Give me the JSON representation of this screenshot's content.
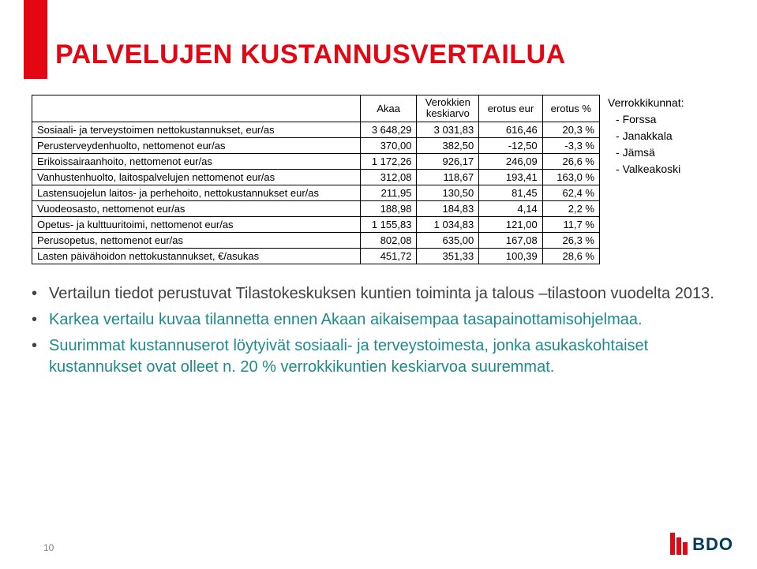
{
  "title": "PALVELUJEN KUSTANNUSVERTAILUA",
  "table": {
    "header_top": {
      "blank": "",
      "akaa": "Akaa",
      "verokkien": "Verokkien\nkeskiarvo",
      "erotus_eur": "erotus eur",
      "erotus_pct": "erotus %"
    },
    "rows": [
      {
        "label": "Sosiaali- ja terveystoimen nettokustannukset, eur/as",
        "c1": "3 648,29",
        "c2": "3 031,83",
        "c3": "616,46",
        "c4": "20,3 %"
      },
      {
        "label": "Perusterveydenhuolto, nettomenot eur/as",
        "c1": "370,00",
        "c2": "382,50",
        "c3": "-12,50",
        "c4": "-3,3 %"
      },
      {
        "label": "Erikoissairaanhoito, nettomenot eur/as",
        "c1": "1 172,26",
        "c2": "926,17",
        "c3": "246,09",
        "c4": "26,6 %"
      },
      {
        "label": "Vanhustenhuolto, laitospalvelujen nettomenot eur/as",
        "c1": "312,08",
        "c2": "118,67",
        "c3": "193,41",
        "c4": "163,0 %"
      },
      {
        "label": "Lastensuojelun laitos- ja perhehoito, nettokustannukset eur/as",
        "c1": "211,95",
        "c2": "130,50",
        "c3": "81,45",
        "c4": "62,4 %"
      },
      {
        "label": "Vuodeosasto, nettomenot eur/as",
        "c1": "188,98",
        "c2": "184,83",
        "c3": "4,14",
        "c4": "2,2 %"
      },
      {
        "label": "Opetus- ja kulttuuritoimi, nettomenot eur/as",
        "c1": "1 155,83",
        "c2": "1 034,83",
        "c3": "121,00",
        "c4": "11,7 %"
      },
      {
        "label": "Perusopetus, nettomenot eur/as",
        "c1": "802,08",
        "c2": "635,00",
        "c3": "167,08",
        "c4": "26,3 %"
      },
      {
        "label": "Lasten päivähoidon nettokustannukset, €/asukas",
        "c1": "451,72",
        "c2": "351,33",
        "c3": "100,39",
        "c4": "28,6 %"
      }
    ]
  },
  "verrokki": {
    "title": "Verrokkikunnat:",
    "items": [
      "Forssa",
      "Janakkala",
      "Jämsä",
      "Valkeakoski"
    ]
  },
  "bullets": [
    {
      "plain": "Vertailun tiedot perustuvat Tilastokeskuksen kuntien toiminta ja talous –tilastoon vuodelta 2013."
    },
    {
      "teal": "Karkea vertailu kuvaa tilannetta ennen Akaan aikaisempaa tasapainottamisohjelmaa."
    },
    {
      "teal": "Suurimmat kustannuserot löytyivät sosiaali- ja terveystoimesta, jonka asukaskohtaiset kustannukset ovat olleet n. 20 % verrokkikuntien keskiarvoa suuremmat."
    }
  ],
  "page_num": "10",
  "logo_text": "BDO"
}
